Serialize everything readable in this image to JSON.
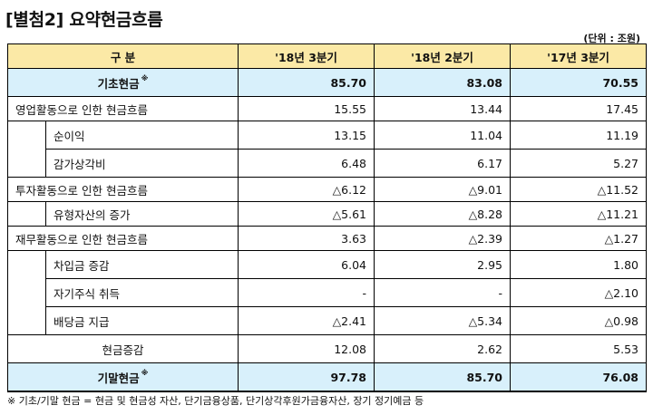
{
  "title": "[별첨2] 요약현금흐름",
  "unit": "(단위 : 조원)",
  "header": {
    "label": "구 분",
    "col1": "'18년 3분기",
    "col2": "'18년 2분기",
    "col3": "'17년 3분기"
  },
  "rows": {
    "begin": {
      "label": "기초현금",
      "mark": "※",
      "v1": "85.70",
      "v2": "83.08",
      "v3": "70.55"
    },
    "op": {
      "label": "영업활동으로 인한 현금흐름",
      "v1": "15.55",
      "v2": "13.44",
      "v3": "17.45"
    },
    "net": {
      "label": "순이익",
      "v1": "13.15",
      "v2": "11.04",
      "v3": "11.19"
    },
    "dep": {
      "label": "감가상각비",
      "v1": "6.48",
      "v2": "6.17",
      "v3": "5.27"
    },
    "inv": {
      "label": "투자활동으로 인한 현금흐름",
      "v1": "△6.12",
      "v2": "△9.01",
      "v3": "△11.52"
    },
    "tang": {
      "label": "유형자산의 증가",
      "v1": "△5.61",
      "v2": "△8.28",
      "v3": "△11.21"
    },
    "fin": {
      "label": "재무활동으로 인한 현금흐름",
      "v1": "3.63",
      "v2": "△2.39",
      "v3": "△1.27"
    },
    "loan": {
      "label": "차입금 증감",
      "v1": "6.04",
      "v2": "2.95",
      "v3": "1.80"
    },
    "treas": {
      "label": "자기주식 취득",
      "v1": "-",
      "v2": "-",
      "v3": "△2.10"
    },
    "div": {
      "label": "배당금 지급",
      "v1": "△2.41",
      "v2": "△5.34",
      "v3": "△0.98"
    },
    "change": {
      "label": "현금증감",
      "v1": "12.08",
      "v2": "2.62",
      "v3": "5.53"
    },
    "end": {
      "label": "기말현금",
      "mark": "※",
      "v1": "97.78",
      "v2": "85.70",
      "v3": "76.08"
    }
  },
  "colors": {
    "header_bg": "#fbe9a6",
    "highlight_bg": "#d8f0fb"
  },
  "footnote": "※ 기초/기말 현금 = 현금 및 현금성 자산, 단기금융상품, 단기상각후원가금융자산, 장기 정기예금 등"
}
